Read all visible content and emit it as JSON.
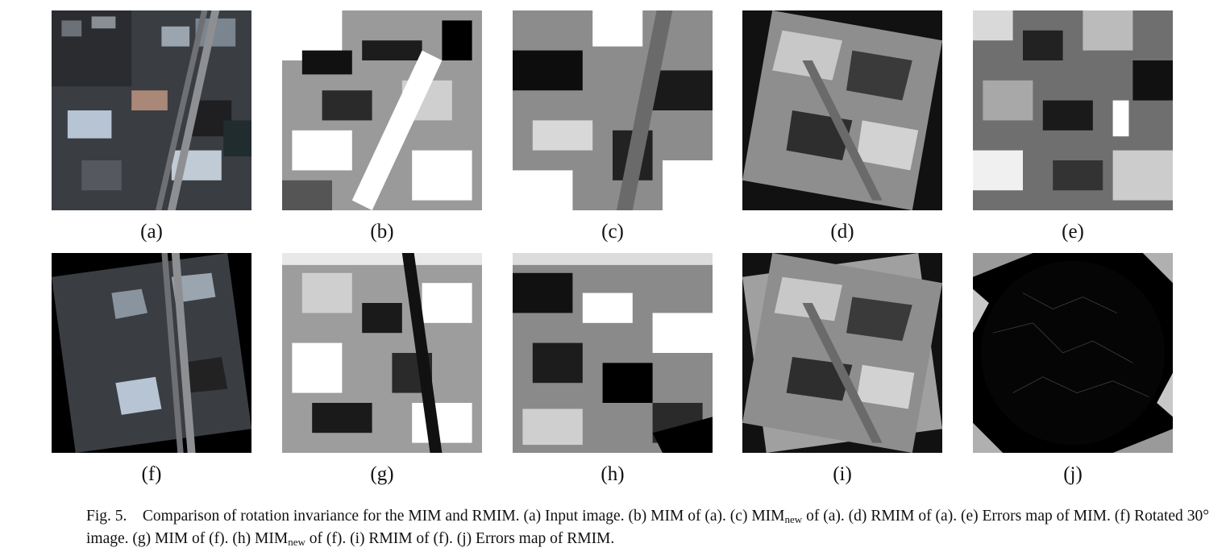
{
  "figure": {
    "panels": [
      {
        "id": "a",
        "label": "(a)",
        "kind": "aerial"
      },
      {
        "id": "b",
        "label": "(b)",
        "kind": "mim"
      },
      {
        "id": "c",
        "label": "(c)",
        "kind": "mim"
      },
      {
        "id": "d",
        "label": "(d)",
        "kind": "rmim"
      },
      {
        "id": "e",
        "label": "(e)",
        "kind": "error"
      },
      {
        "id": "f",
        "label": "(f)",
        "kind": "aerial-rotated"
      },
      {
        "id": "g",
        "label": "(g)",
        "kind": "mim"
      },
      {
        "id": "h",
        "label": "(h)",
        "kind": "mim"
      },
      {
        "id": "i",
        "label": "(i)",
        "kind": "rmim"
      },
      {
        "id": "j",
        "label": "(j)",
        "kind": "error-dark"
      }
    ],
    "caption": {
      "part1": "Fig. 5. Comparison of rotation invariance for the MIM and RMIM. (a) Input image. (b) MIM of (a). (c) MIM",
      "sub1": "new",
      "part2": " of (a). (d) RMIM of (a). (e) Errors map of MIM. (f) Rotated 30° image. (g) MIM of (f). (h) MIM",
      "sub2": "new",
      "part3": " of (f). (i) RMIM of (f). (j) Errors map of RMIM."
    }
  }
}
